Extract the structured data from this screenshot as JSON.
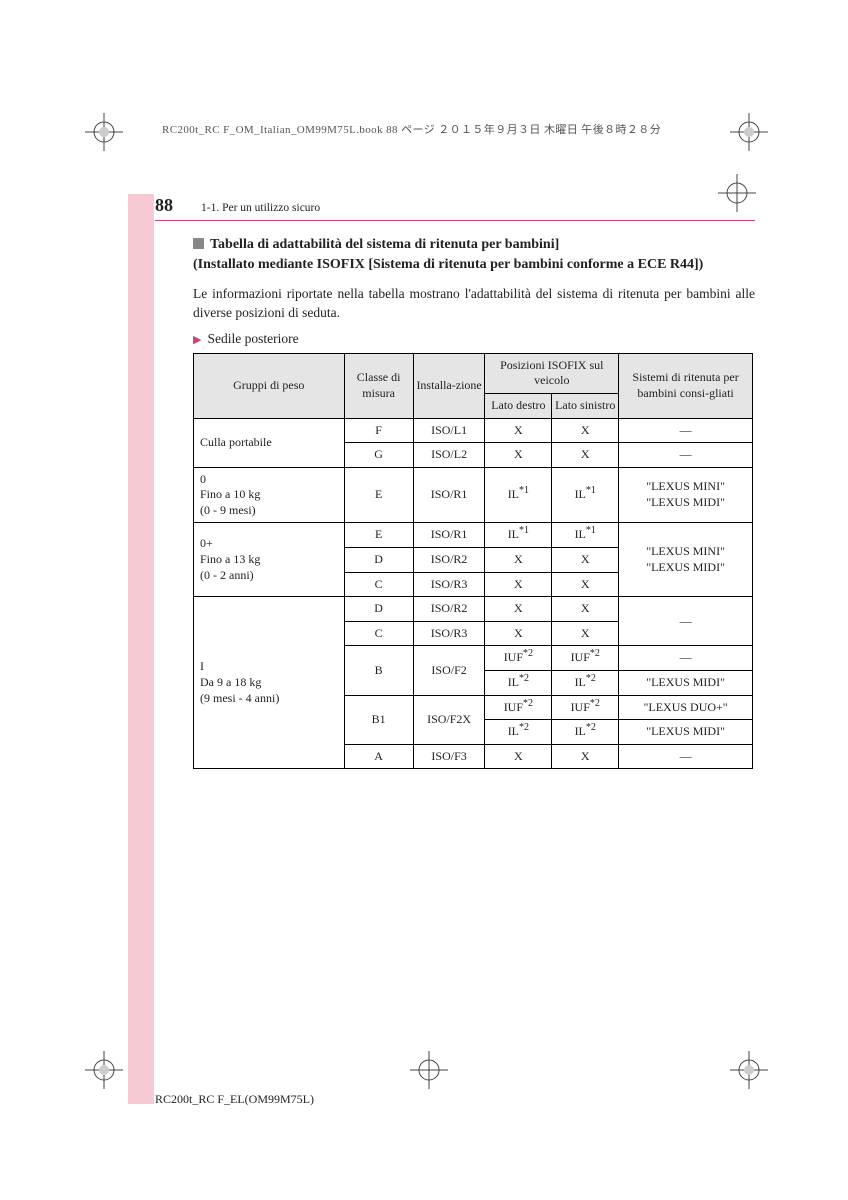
{
  "topLine": "RC200t_RC F_OM_Italian_OM99M75L.book  88 ページ  ２０１５年９月３日  木曜日  午後８時２８分",
  "pageNumber": "88",
  "sectionLabel": "1-1. Per un utilizzo sicuro",
  "headingLine1": "Tabella di adattabilità del sistema di ritenuta per bambini]",
  "headingLine2": "(Installato mediante ISOFIX [Sistema di ritenuta per bambini conforme a ECE R44])",
  "paragraph": "Le informazioni riportate nella tabella mostrano l'adattabilità del sistema di ritenuta per bambini alle diverse posizioni di seduta.",
  "subBullet": "Sedile posteriore",
  "table": {
    "header": {
      "c1": "Gruppi di peso",
      "c2": "Classe di misura",
      "c3": "Installa-zione",
      "c4": "Posizioni ISOFIX sul veicolo",
      "c4a": "Lato destro",
      "c4b": "Lato sinistro",
      "c5": "Sistemi di ritenuta per bambini consi-gliati"
    },
    "rows": [
      {
        "group": "Culla portabile",
        "groupRowspan": 2,
        "cls": "F",
        "inst": "ISO/L1",
        "r": "X",
        "l": "X",
        "sys": "—",
        "sysRowspan": 1
      },
      {
        "cls": "G",
        "inst": "ISO/L2",
        "r": "X",
        "l": "X",
        "sys": "—",
        "sysRowspan": 1
      },
      {
        "group": "0\nFino a 10 kg\n(0 - 9 mesi)",
        "groupRowspan": 1,
        "cls": "E",
        "inst": "ISO/R1",
        "r": "IL*1",
        "l": "IL*1",
        "sys": "\"LEXUS MINI\"\n\"LEXUS MIDI\"",
        "sysRowspan": 1
      },
      {
        "group": "0+\nFino a 13 kg\n(0 - 2 anni)",
        "groupRowspan": 3,
        "cls": "E",
        "inst": "ISO/R1",
        "r": "IL*1",
        "l": "IL*1",
        "sys": "\"LEXUS MINI\"\n\"LEXUS MIDI\"",
        "sysRowspan": 3
      },
      {
        "cls": "D",
        "inst": "ISO/R2",
        "r": "X",
        "l": "X"
      },
      {
        "cls": "C",
        "inst": "ISO/R3",
        "r": "X",
        "l": "X"
      },
      {
        "group": "I\nDa 9 a 18 kg\n(9 mesi - 4 anni)",
        "groupRowspan": 7,
        "cls": "D",
        "inst": "ISO/R2",
        "r": "X",
        "l": "X",
        "sys": "—",
        "sysRowspan": 2
      },
      {
        "cls": "C",
        "inst": "ISO/R3",
        "r": "X",
        "l": "X"
      },
      {
        "cls": "B",
        "clsRowspan": 2,
        "inst": "ISO/F2",
        "instRowspan": 2,
        "r": "IUF*2",
        "l": "IUF*2",
        "sys": "—",
        "sysRowspan": 1
      },
      {
        "r": "IL*2",
        "l": "IL*2",
        "sys": "\"LEXUS MIDI\"",
        "sysRowspan": 1
      },
      {
        "cls": "B1",
        "clsRowspan": 2,
        "inst": "ISO/F2X",
        "instRowspan": 2,
        "r": "IUF*2",
        "l": "IUF*2",
        "sys": "\"LEXUS DUO+\"",
        "sysRowspan": 1
      },
      {
        "r": "IL*2",
        "l": "IL*2",
        "sys": "\"LEXUS MIDI\"",
        "sysRowspan": 1
      },
      {
        "cls": "A",
        "inst": "ISO/F3",
        "r": "X",
        "l": "X",
        "sys": "—",
        "sysRowspan": 1
      }
    ]
  },
  "footer": "RC200t_RC F_EL(OM99M75L)",
  "colors": {
    "pink": "#f7c9d3",
    "accent": "#c9446a",
    "headerBg": "#e5e5e5"
  }
}
